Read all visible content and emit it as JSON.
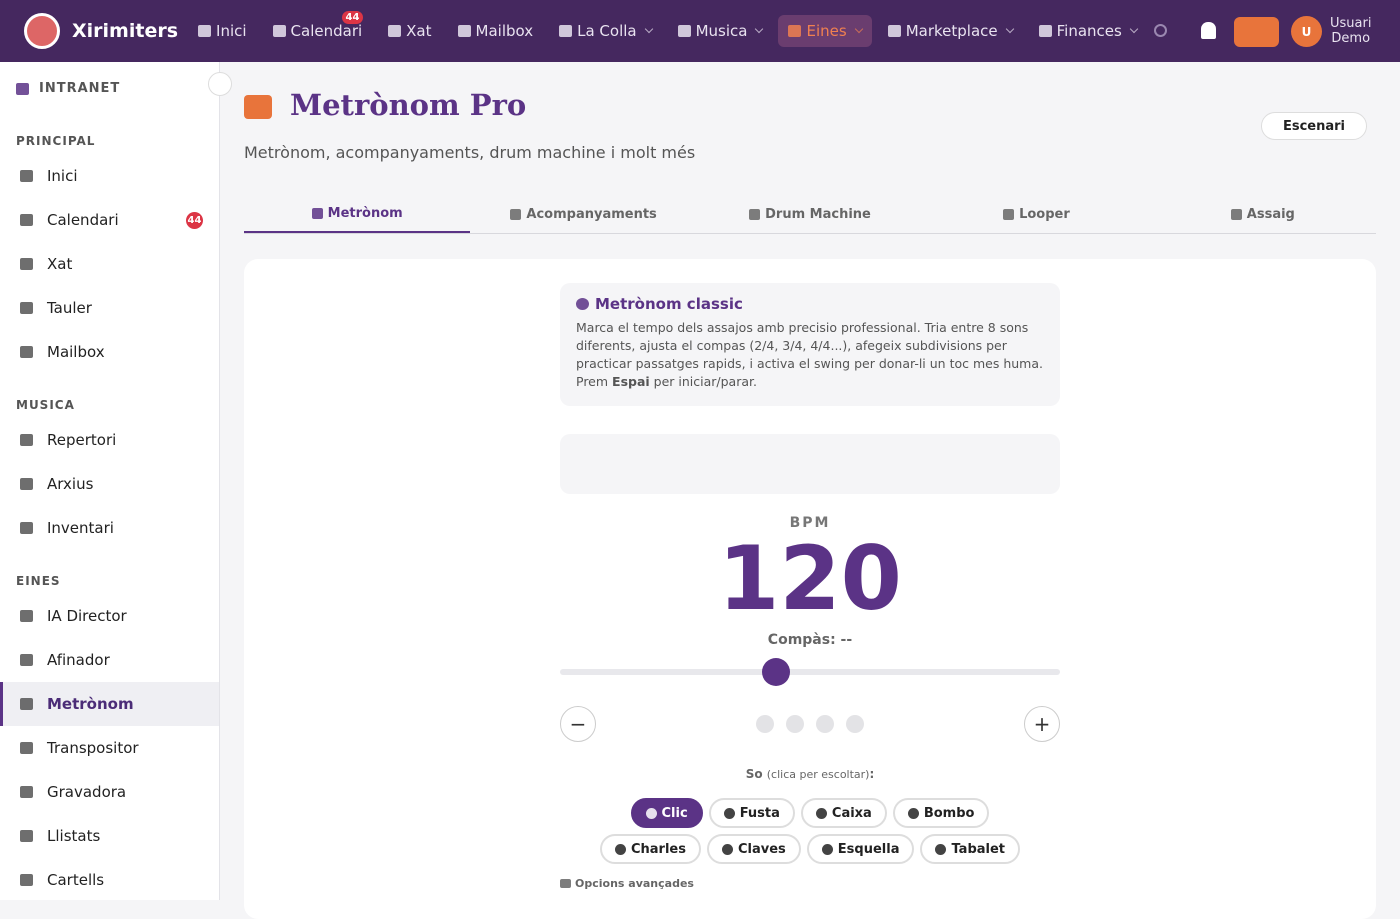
{
  "nav": {
    "brand": "Xirimiters",
    "items": [
      {
        "label": "Inici"
      },
      {
        "label": "Calendari",
        "badge": "44"
      },
      {
        "label": "Xat"
      },
      {
        "label": "Mailbox"
      },
      {
        "label": "La Colla",
        "dropdown": true
      },
      {
        "label": "Musica",
        "dropdown": true
      },
      {
        "label": "Eines",
        "dropdown": true,
        "active": true
      },
      {
        "label": "Marketplace",
        "dropdown": true
      },
      {
        "label": "Finances",
        "dropdown": true
      }
    ],
    "user": {
      "initial": "U",
      "name": "Usuari",
      "role": "Demo"
    }
  },
  "sidebar": {
    "title": "INTRANET",
    "sections": [
      {
        "heading": "PRINCIPAL",
        "items": [
          {
            "label": "Inici"
          },
          {
            "label": "Calendari",
            "badge": "44"
          },
          {
            "label": "Xat"
          },
          {
            "label": "Tauler"
          },
          {
            "label": "Mailbox"
          }
        ]
      },
      {
        "heading": "MUSICA",
        "items": [
          {
            "label": "Repertori"
          },
          {
            "label": "Arxius"
          },
          {
            "label": "Inventari"
          }
        ]
      },
      {
        "heading": "EINES",
        "items": [
          {
            "label": "IA Director"
          },
          {
            "label": "Afinador"
          },
          {
            "label": "Metrònom",
            "active": true
          },
          {
            "label": "Transpositor"
          },
          {
            "label": "Gravadora"
          },
          {
            "label": "Llistats"
          },
          {
            "label": "Cartells"
          }
        ]
      }
    ]
  },
  "header": {
    "title": "Metrònom Pro",
    "subtitle": "Metrònom, acompanyaments, drum machine i molt més",
    "stage_button": "Escenari"
  },
  "tabs": [
    {
      "label": "Metrònom",
      "active": true
    },
    {
      "label": "Acompanyaments"
    },
    {
      "label": "Drum Machine"
    },
    {
      "label": "Looper"
    },
    {
      "label": "Assaig"
    }
  ],
  "info": {
    "title": "Metrònom classic",
    "text_before": "Marca el tempo dels assajos amb precisio professional. Tria entre 8 sons diferents, ajusta el compas (2/4, 3/4, 4/4...), afegeix subdivisions per practicar passatges rapids, i activa el swing per donar-li un toc mes huma. Prem ",
    "key": "Espai",
    "text_after": " per iniciar/parar."
  },
  "metronome": {
    "bpm_label": "BPM",
    "bpm": 120,
    "compas": "Compàs: --",
    "decrease": "−",
    "increase": "+",
    "sound_label": "So",
    "sound_hint": "(clica per escoltar)",
    "sound_colon": ":",
    "sounds": [
      {
        "label": "Clic",
        "active": true
      },
      {
        "label": "Fusta"
      },
      {
        "label": "Caixa"
      },
      {
        "label": "Bombo"
      },
      {
        "label": "Charles"
      },
      {
        "label": "Claves"
      },
      {
        "label": "Esquella"
      },
      {
        "label": "Tabalet"
      }
    ],
    "advanced": "Opcions avançades"
  }
}
